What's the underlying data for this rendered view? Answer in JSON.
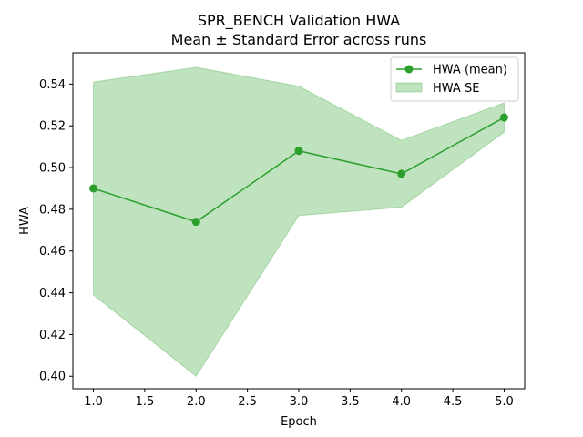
{
  "chart_data": {
    "type": "line",
    "title": "SPR_BENCH Validation HWA",
    "subtitle": "Mean ± Standard Error across runs",
    "xlabel": "Epoch",
    "ylabel": "HWA",
    "xlim": [
      0.8,
      5.2
    ],
    "ylim": [
      0.394,
      0.555
    ],
    "xticks": [
      1.0,
      1.5,
      2.0,
      2.5,
      3.0,
      3.5,
      4.0,
      4.5,
      5.0
    ],
    "xtick_labels": [
      "1.0",
      "1.5",
      "2.0",
      "2.5",
      "3.0",
      "3.5",
      "4.0",
      "4.5",
      "5.0"
    ],
    "yticks": [
      0.4,
      0.42,
      0.44,
      0.46,
      0.48,
      0.5,
      0.52,
      0.54
    ],
    "ytick_labels": [
      "0.40",
      "0.42",
      "0.44",
      "0.46",
      "0.48",
      "0.50",
      "0.52",
      "0.54"
    ],
    "grid": false,
    "legend_position": "top-right",
    "x": [
      1,
      2,
      3,
      4,
      5
    ],
    "series": [
      {
        "name": "HWA (mean)",
        "kind": "line-markers",
        "color": "#2ca02c",
        "values": [
          0.49,
          0.474,
          0.508,
          0.497,
          0.524
        ]
      },
      {
        "name": "HWA SE",
        "kind": "band",
        "color": "#2ca02c",
        "opacity": 0.3,
        "lower": [
          0.439,
          0.4,
          0.477,
          0.481,
          0.517
        ],
        "upper": [
          0.541,
          0.548,
          0.539,
          0.513,
          0.531
        ]
      }
    ]
  }
}
